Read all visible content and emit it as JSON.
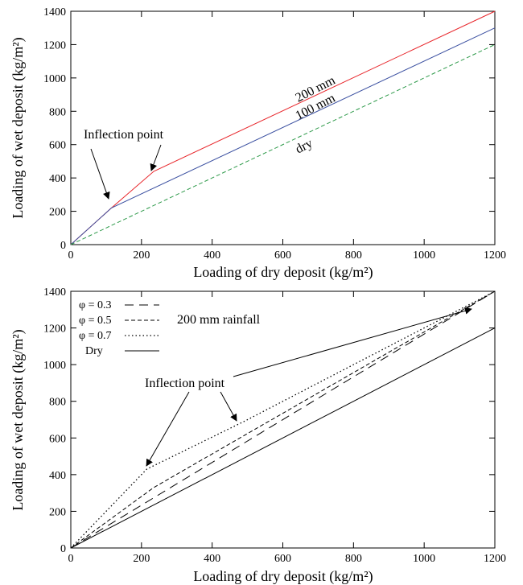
{
  "chart_data": [
    {
      "type": "line",
      "xlabel": "Loading of dry deposit (kg/m²)",
      "ylabel": "Loading of wet deposit (kg/m²)",
      "xlim": [
        0,
        1200
      ],
      "ylim": [
        0,
        1400
      ],
      "xticks": [
        "0",
        "200",
        "400",
        "600",
        "800",
        "1000",
        "1200"
      ],
      "yticks": [
        "0",
        "200",
        "400",
        "600",
        "800",
        "1000",
        "1200",
        "1400"
      ],
      "grid": false,
      "series": [
        {
          "name": "200 mm",
          "color": "#e8262b",
          "dash": "solid",
          "x": [
            0,
            115,
            235,
            1200
          ],
          "y": [
            0,
            220,
            440,
            1400
          ]
        },
        {
          "name": "100 mm",
          "color": "#3a4fa0",
          "dash": "solid",
          "x": [
            0,
            115,
            1200
          ],
          "y": [
            0,
            220,
            1300
          ]
        },
        {
          "name": "dry",
          "color": "#2e9a4a",
          "dash": "dashed",
          "x": [
            0,
            1200
          ],
          "y": [
            0,
            1200
          ]
        }
      ],
      "annotations": [
        {
          "text": "Inflection point",
          "arrows_to": [
            [
              115,
              220
            ],
            [
              235,
              440
            ]
          ]
        }
      ]
    },
    {
      "type": "line",
      "xlabel": "Loading of dry deposit (kg/m²)",
      "ylabel": "Loading of wet deposit (kg/m²)",
      "xlim": [
        0,
        1200
      ],
      "ylim": [
        0,
        1400
      ],
      "xticks": [
        "0",
        "200",
        "400",
        "600",
        "800",
        "1000",
        "1200"
      ],
      "yticks": [
        "0",
        "200",
        "400",
        "600",
        "800",
        "1000",
        "1200",
        "1400"
      ],
      "grid": false,
      "legend": "top-left",
      "series": [
        {
          "name": "φ = 0.3",
          "color": "#000000",
          "dash": "longdash",
          "x": [
            0,
            1200
          ],
          "y": [
            0,
            1400
          ]
        },
        {
          "name": "φ = 0.5",
          "color": "#000000",
          "dash": "dashed",
          "x": [
            0,
            235,
            1200
          ],
          "y": [
            0,
            330,
            1400
          ]
        },
        {
          "name": "φ = 0.7",
          "color": "#000000",
          "dash": "dotted",
          "x": [
            0,
            215,
            490,
            1200
          ],
          "y": [
            0,
            430,
            690,
            1400
          ]
        },
        {
          "name": "Dry",
          "color": "#000000",
          "dash": "solid",
          "x": [
            0,
            1200
          ],
          "y": [
            0,
            1200
          ]
        }
      ],
      "annotations": [
        {
          "text": "200 mm rainfall"
        },
        {
          "text": "Inflection point",
          "arrows_to": [
            [
              215,
              430
            ],
            [
              490,
              690
            ],
            [
              1150,
              1330
            ]
          ]
        }
      ]
    }
  ]
}
